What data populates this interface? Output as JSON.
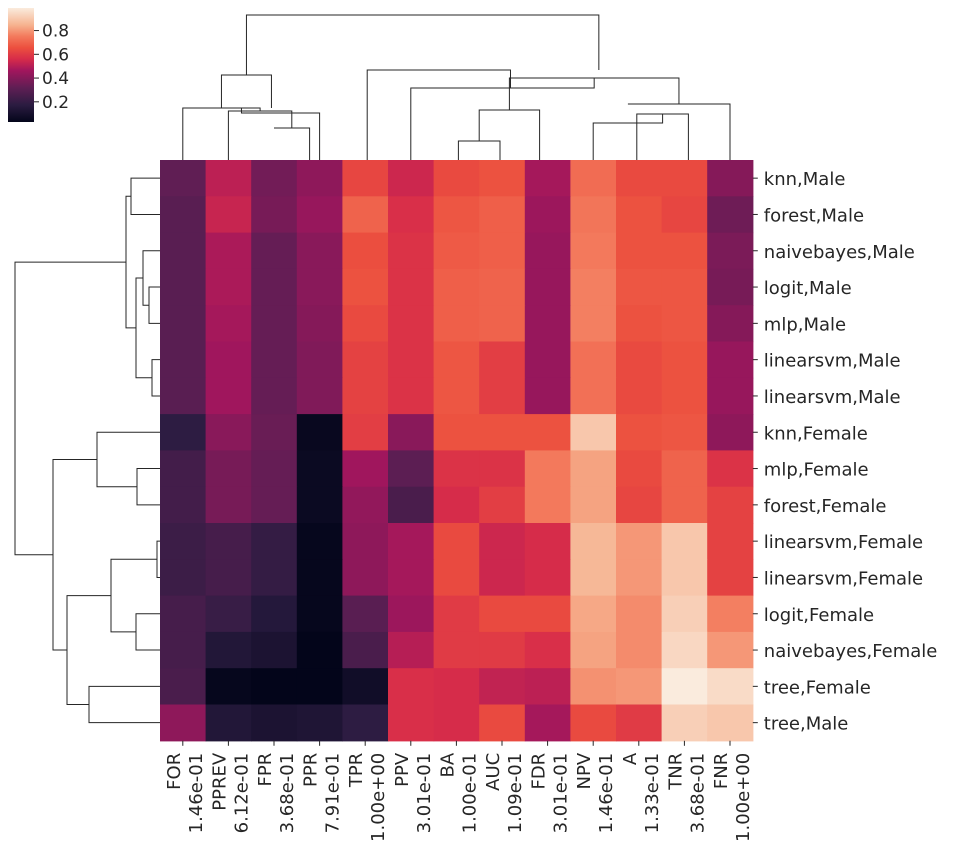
{
  "chart_data": {
    "type": "heatmap",
    "subtype": "clustermap",
    "title": "",
    "columns": [
      "FOR",
      "PPREV",
      "FPR",
      "PPR",
      "TPR",
      "PPV",
      "BA",
      "AUC",
      "FDR",
      "NPV",
      "A",
      "TNR",
      "FNR"
    ],
    "column_labels": [
      [
        "FOR",
        "1.46e-01"
      ],
      [
        "PPREV",
        "6.12e-01"
      ],
      [
        "FPR",
        "3.68e-01"
      ],
      [
        "PPR",
        "7.91e-01"
      ],
      [
        "TPR",
        "1.00e+00"
      ],
      [
        "PPV",
        "3.01e-01"
      ],
      [
        "BA",
        "1.00e-01"
      ],
      [
        "AUC",
        "1.09e-01"
      ],
      [
        "FDR",
        "3.01e-01"
      ],
      [
        "NPV",
        "1.46e-01"
      ],
      [
        "A",
        "1.33e-01"
      ],
      [
        "TNR",
        "3.68e-01"
      ],
      [
        "FNR",
        "1.00e+00"
      ]
    ],
    "rows": [
      "knn,Male",
      "forest,Male",
      "naivebayes,Male",
      "logit,Male",
      "mlp,Male",
      "linearsvm,Male",
      "linearsvm,Male",
      "knn,Female",
      "mlp,Female",
      "forest,Female",
      "linearsvm,Female",
      "linearsvm,Female",
      "logit,Female",
      "naivebayes,Female",
      "tree,Female",
      "tree,Male"
    ],
    "values": [
      [
        0.32,
        0.51,
        0.36,
        0.42,
        0.63,
        0.54,
        0.64,
        0.66,
        0.47,
        0.72,
        0.64,
        0.64,
        0.4
      ],
      [
        0.3,
        0.53,
        0.37,
        0.44,
        0.7,
        0.57,
        0.67,
        0.69,
        0.45,
        0.74,
        0.66,
        0.63,
        0.35
      ],
      [
        0.3,
        0.48,
        0.33,
        0.41,
        0.65,
        0.58,
        0.68,
        0.69,
        0.44,
        0.75,
        0.66,
        0.66,
        0.38
      ],
      [
        0.3,
        0.48,
        0.33,
        0.41,
        0.66,
        0.58,
        0.69,
        0.7,
        0.44,
        0.76,
        0.67,
        0.67,
        0.37
      ],
      [
        0.3,
        0.47,
        0.33,
        0.4,
        0.64,
        0.58,
        0.69,
        0.7,
        0.44,
        0.76,
        0.66,
        0.67,
        0.4
      ],
      [
        0.3,
        0.46,
        0.33,
        0.39,
        0.62,
        0.58,
        0.67,
        0.61,
        0.44,
        0.73,
        0.64,
        0.66,
        0.44
      ],
      [
        0.3,
        0.46,
        0.33,
        0.39,
        0.62,
        0.58,
        0.67,
        0.61,
        0.44,
        0.73,
        0.64,
        0.66,
        0.44
      ],
      [
        0.18,
        0.41,
        0.34,
        0.05,
        0.61,
        0.41,
        0.66,
        0.66,
        0.66,
        0.9,
        0.66,
        0.67,
        0.42
      ],
      [
        0.24,
        0.37,
        0.33,
        0.06,
        0.46,
        0.31,
        0.58,
        0.58,
        0.75,
        0.82,
        0.64,
        0.7,
        0.58
      ],
      [
        0.24,
        0.37,
        0.33,
        0.06,
        0.43,
        0.26,
        0.56,
        0.61,
        0.75,
        0.82,
        0.63,
        0.7,
        0.62
      ],
      [
        0.22,
        0.25,
        0.2,
        0.04,
        0.42,
        0.47,
        0.64,
        0.54,
        0.56,
        0.86,
        0.8,
        0.9,
        0.62
      ],
      [
        0.22,
        0.25,
        0.2,
        0.04,
        0.42,
        0.47,
        0.64,
        0.54,
        0.56,
        0.86,
        0.8,
        0.9,
        0.62
      ],
      [
        0.25,
        0.21,
        0.15,
        0.04,
        0.3,
        0.45,
        0.6,
        0.64,
        0.64,
        0.83,
        0.78,
        0.92,
        0.76
      ],
      [
        0.25,
        0.14,
        0.12,
        0.03,
        0.26,
        0.5,
        0.6,
        0.6,
        0.57,
        0.82,
        0.78,
        0.94,
        0.8
      ],
      [
        0.26,
        0.04,
        0.03,
        0.03,
        0.08,
        0.57,
        0.56,
        0.52,
        0.51,
        0.79,
        0.8,
        0.99,
        0.95
      ],
      [
        0.42,
        0.14,
        0.12,
        0.13,
        0.18,
        0.57,
        0.56,
        0.64,
        0.47,
        0.64,
        0.6,
        0.92,
        0.9
      ]
    ],
    "colormap": "rocket",
    "colorbar": {
      "vmin": 0.03,
      "vmax": 0.99,
      "ticks": [
        0.2,
        0.4,
        0.6,
        0.8
      ],
      "tick_labels": [
        "0.2",
        "0.4",
        "0.6",
        "0.8"
      ]
    },
    "colormap_stops": [
      {
        "v": 0.0,
        "color": "#03051a"
      },
      {
        "v": 0.15,
        "color": "#2b1c41"
      },
      {
        "v": 0.3,
        "color": "#5f1e54"
      },
      {
        "v": 0.45,
        "color": "#a1165d"
      },
      {
        "v": 0.55,
        "color": "#d62b4a"
      },
      {
        "v": 0.65,
        "color": "#ec4f3e"
      },
      {
        "v": 0.75,
        "color": "#f3795c"
      },
      {
        "v": 0.85,
        "color": "#f6b28f"
      },
      {
        "v": 1.0,
        "color": "#faebdd"
      }
    ],
    "row_dendrogram": "hierarchical clustering of rows",
    "column_dendrogram": "hierarchical clustering of columns"
  }
}
